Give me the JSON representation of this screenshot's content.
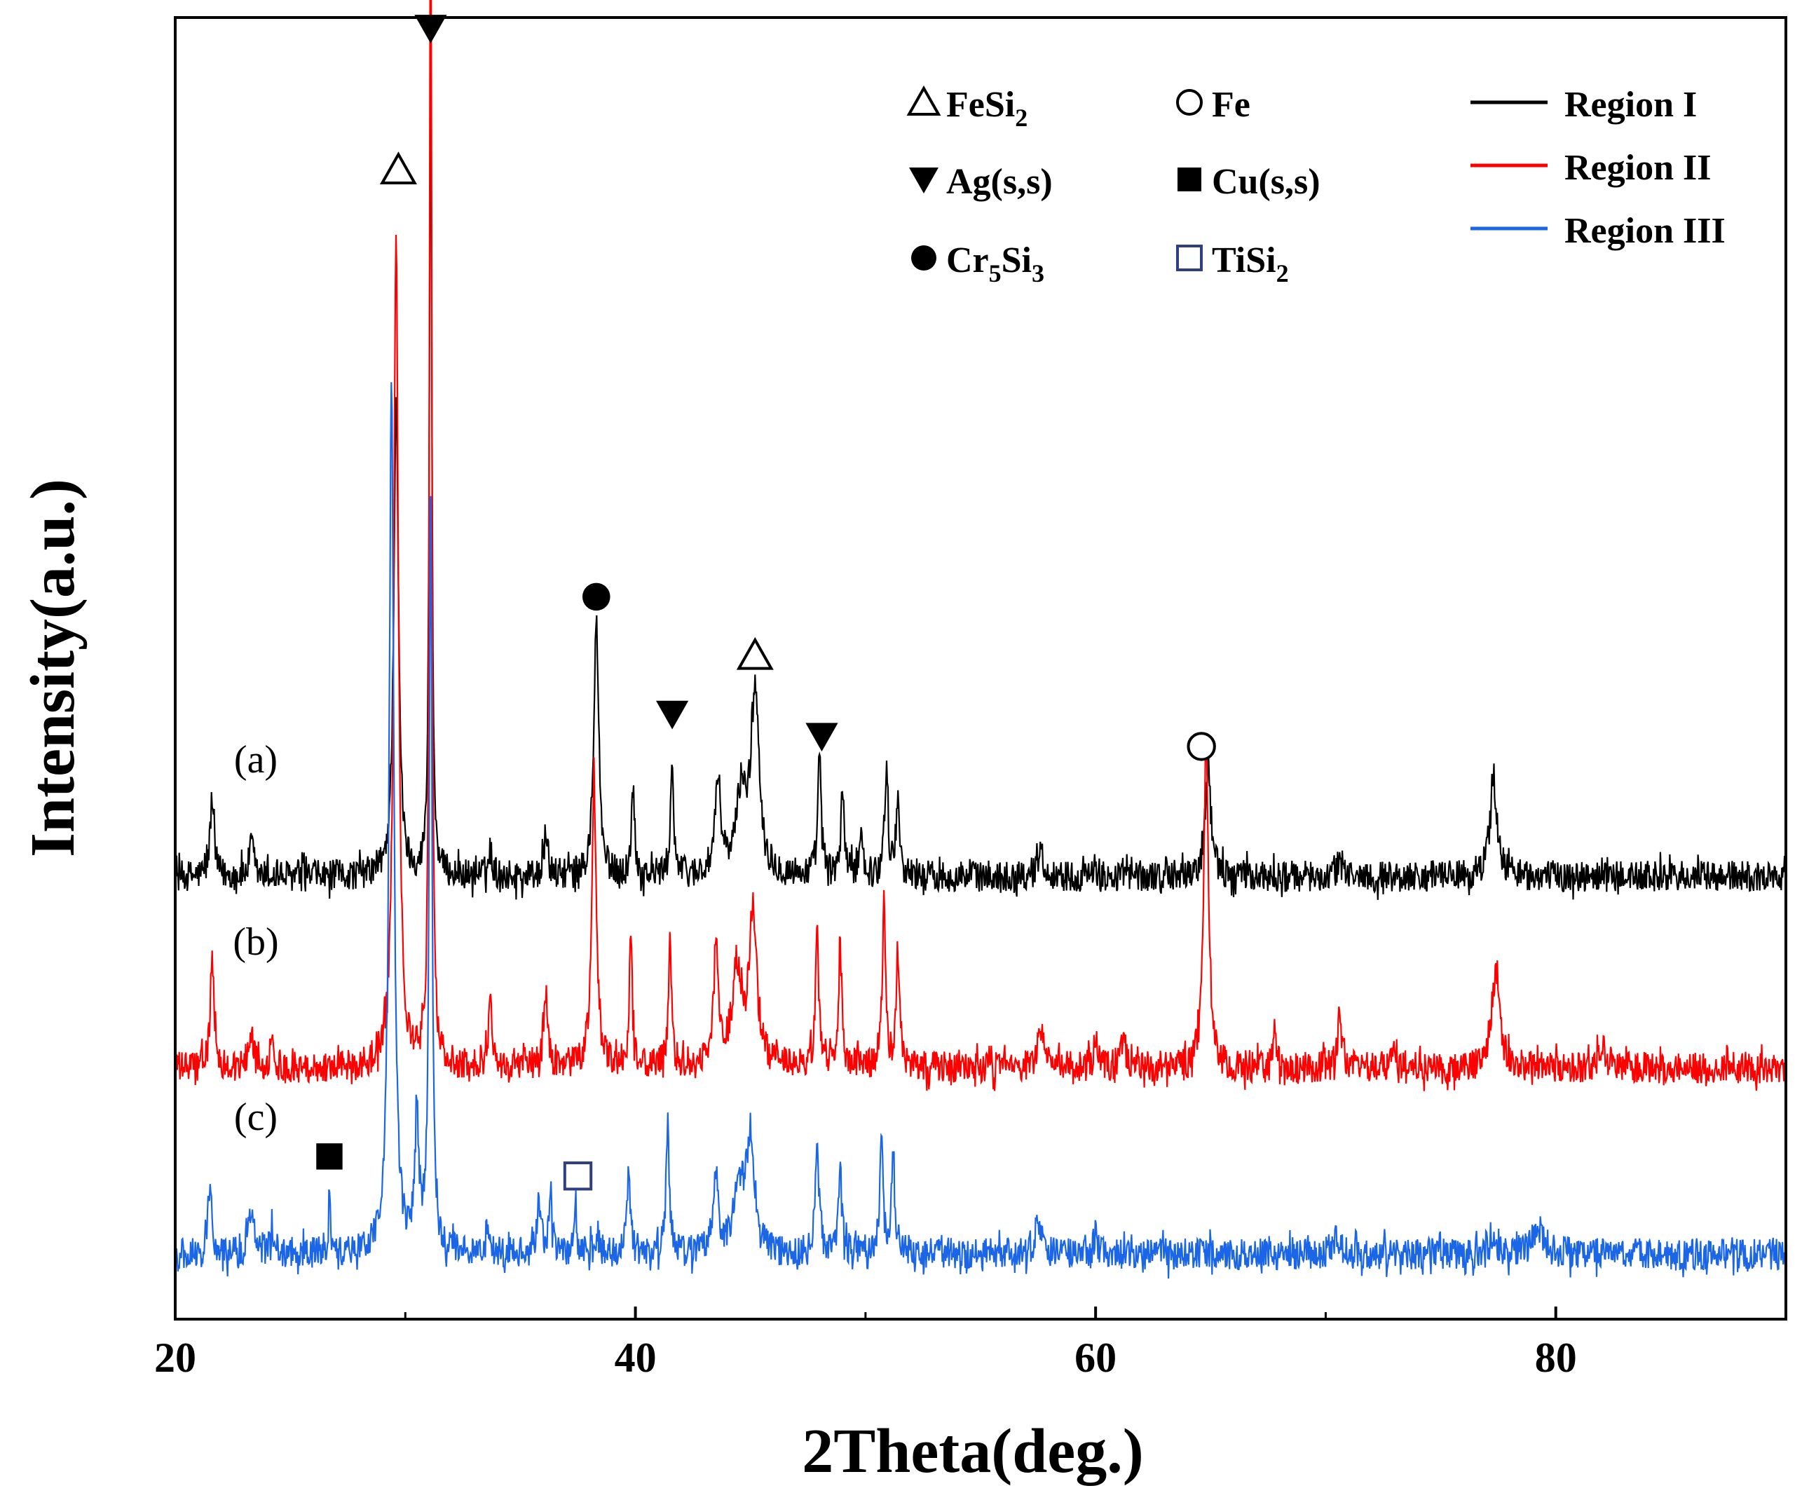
{
  "chart_data": {
    "type": "line",
    "title": "",
    "xlabel": "2Theta(deg.)",
    "ylabel": "Intensity(a.u.)",
    "xlim": [
      20,
      90
    ],
    "ylim": [
      0,
      1
    ],
    "xticks": [
      20,
      40,
      60,
      80
    ],
    "xtick_labels": [
      "20",
      "40",
      "60",
      "80"
    ],
    "yticks_shown": false,
    "grid": false,
    "legend_position": "top-right",
    "series": [
      {
        "name": "Region I",
        "curve_label": "(a)",
        "color": "#000000",
        "baseline": 0.34,
        "noise": 0.012,
        "peaks": [
          {
            "x": 21.6,
            "h": 0.06,
            "w": 0.1
          },
          {
            "x": 23.3,
            "h": 0.025,
            "w": 0.1
          },
          {
            "x": 29.6,
            "h": 0.37,
            "w": 0.12
          },
          {
            "x": 31.1,
            "h": 0.67,
            "w": 0.06
          },
          {
            "x": 33.7,
            "h": 0.02,
            "w": 0.1
          },
          {
            "x": 36.1,
            "h": 0.03,
            "w": 0.1
          },
          {
            "x": 38.3,
            "h": 0.2,
            "w": 0.12
          },
          {
            "x": 39.9,
            "h": 0.07,
            "w": 0.08
          },
          {
            "x": 41.6,
            "h": 0.09,
            "w": 0.08
          },
          {
            "x": 43.6,
            "h": 0.07,
            "w": 0.15
          },
          {
            "x": 44.6,
            "h": 0.06,
            "w": 0.25
          },
          {
            "x": 45.2,
            "h": 0.14,
            "w": 0.22
          },
          {
            "x": 48.0,
            "h": 0.09,
            "w": 0.09
          },
          {
            "x": 49.0,
            "h": 0.07,
            "w": 0.08
          },
          {
            "x": 49.8,
            "h": 0.04,
            "w": 0.08
          },
          {
            "x": 50.9,
            "h": 0.08,
            "w": 0.09
          },
          {
            "x": 51.4,
            "h": 0.06,
            "w": 0.09
          },
          {
            "x": 57.6,
            "h": 0.02,
            "w": 0.15
          },
          {
            "x": 64.9,
            "h": 0.09,
            "w": 0.14
          },
          {
            "x": 70.7,
            "h": 0.015,
            "w": 0.1
          },
          {
            "x": 77.3,
            "h": 0.07,
            "w": 0.2
          }
        ]
      },
      {
        "name": "Region II",
        "curve_label": "(b)",
        "color": "#ff0000",
        "baseline": 0.193,
        "noise": 0.012,
        "peaks": [
          {
            "x": 21.6,
            "h": 0.08,
            "w": 0.1
          },
          {
            "x": 23.3,
            "h": 0.03,
            "w": 0.1
          },
          {
            "x": 24.2,
            "h": 0.015,
            "w": 0.12
          },
          {
            "x": 29.6,
            "h": 0.64,
            "w": 0.12
          },
          {
            "x": 31.1,
            "h": 0.96,
            "w": 0.06
          },
          {
            "x": 33.7,
            "h": 0.05,
            "w": 0.1
          },
          {
            "x": 36.1,
            "h": 0.06,
            "w": 0.1
          },
          {
            "x": 38.2,
            "h": 0.22,
            "w": 0.12
          },
          {
            "x": 39.8,
            "h": 0.1,
            "w": 0.08
          },
          {
            "x": 41.5,
            "h": 0.1,
            "w": 0.08
          },
          {
            "x": 43.5,
            "h": 0.09,
            "w": 0.13
          },
          {
            "x": 44.4,
            "h": 0.07,
            "w": 0.25
          },
          {
            "x": 45.1,
            "h": 0.12,
            "w": 0.2
          },
          {
            "x": 47.9,
            "h": 0.1,
            "w": 0.09
          },
          {
            "x": 48.9,
            "h": 0.09,
            "w": 0.08
          },
          {
            "x": 50.8,
            "h": 0.13,
            "w": 0.08
          },
          {
            "x": 51.4,
            "h": 0.09,
            "w": 0.09
          },
          {
            "x": 57.6,
            "h": 0.03,
            "w": 0.15
          },
          {
            "x": 60.0,
            "h": 0.02,
            "w": 0.1
          },
          {
            "x": 61.2,
            "h": 0.02,
            "w": 0.15
          },
          {
            "x": 64.8,
            "h": 0.25,
            "w": 0.12
          },
          {
            "x": 67.8,
            "h": 0.03,
            "w": 0.08
          },
          {
            "x": 70.6,
            "h": 0.04,
            "w": 0.1
          },
          {
            "x": 73.0,
            "h": 0.015,
            "w": 0.15
          },
          {
            "x": 77.4,
            "h": 0.07,
            "w": 0.2
          },
          {
            "x": 82.0,
            "h": 0.02,
            "w": 0.15
          }
        ]
      },
      {
        "name": "Region III",
        "curve_label": "(c)",
        "color": "#1a66e6",
        "baseline": 0.05,
        "noise": 0.012,
        "peaks": [
          {
            "x": 21.5,
            "h": 0.05,
            "w": 0.1
          },
          {
            "x": 23.3,
            "h": 0.035,
            "w": 0.12
          },
          {
            "x": 24.2,
            "h": 0.015,
            "w": 0.12
          },
          {
            "x": 26.7,
            "h": 0.045,
            "w": 0.04
          },
          {
            "x": 29.4,
            "h": 0.67,
            "w": 0.12
          },
          {
            "x": 30.5,
            "h": 0.1,
            "w": 0.1
          },
          {
            "x": 31.1,
            "h": 0.6,
            "w": 0.07
          },
          {
            "x": 33.6,
            "h": 0.02,
            "w": 0.1
          },
          {
            "x": 35.8,
            "h": 0.04,
            "w": 0.1
          },
          {
            "x": 36.3,
            "h": 0.05,
            "w": 0.08
          },
          {
            "x": 37.4,
            "h": 0.035,
            "w": 0.06
          },
          {
            "x": 38.3,
            "h": 0.02,
            "w": 0.1
          },
          {
            "x": 39.7,
            "h": 0.06,
            "w": 0.1
          },
          {
            "x": 41.4,
            "h": 0.1,
            "w": 0.08
          },
          {
            "x": 43.5,
            "h": 0.06,
            "w": 0.12
          },
          {
            "x": 44.5,
            "h": 0.05,
            "w": 0.25
          },
          {
            "x": 45.0,
            "h": 0.09,
            "w": 0.2
          },
          {
            "x": 47.9,
            "h": 0.09,
            "w": 0.09
          },
          {
            "x": 48.9,
            "h": 0.07,
            "w": 0.08
          },
          {
            "x": 50.7,
            "h": 0.1,
            "w": 0.08
          },
          {
            "x": 51.2,
            "h": 0.08,
            "w": 0.09
          },
          {
            "x": 57.5,
            "h": 0.035,
            "w": 0.12
          },
          {
            "x": 60.0,
            "h": 0.015,
            "w": 0.1
          },
          {
            "x": 70.5,
            "h": 0.015,
            "w": 0.15
          },
          {
            "x": 77.2,
            "h": 0.015,
            "w": 0.2
          },
          {
            "x": 79.2,
            "h": 0.02,
            "w": 0.3
          }
        ]
      }
    ],
    "phase_markers": [
      {
        "symbol": "open-triangle",
        "x": 29.7,
        "y": 0.883,
        "color": "#000000"
      },
      {
        "symbol": "filled-down-triangle",
        "x": 31.1,
        "y": 0.992,
        "color": "#000000"
      },
      {
        "symbol": "filled-circle",
        "x": 38.3,
        "y": 0.555,
        "color": "#000000"
      },
      {
        "symbol": "open-triangle",
        "x": 45.2,
        "y": 0.51,
        "color": "#000000"
      },
      {
        "symbol": "filled-down-triangle",
        "x": 41.6,
        "y": 0.465,
        "color": "#000000"
      },
      {
        "symbol": "filled-down-triangle",
        "x": 48.1,
        "y": 0.448,
        "color": "#000000"
      },
      {
        "symbol": "open-circle",
        "x": 64.6,
        "y": 0.44,
        "color": "#000000"
      },
      {
        "symbol": "filled-square",
        "x": 26.7,
        "y": 0.125,
        "color": "#000000"
      },
      {
        "symbol": "open-square",
        "x": 37.5,
        "y": 0.11,
        "color": "#2f3f7f"
      }
    ],
    "phase_legend": [
      {
        "symbol": "open-triangle",
        "name": "FeSi",
        "sub": "2",
        "color": "#000000"
      },
      {
        "symbol": "open-circle",
        "name": "Fe",
        "sub": "",
        "color": "#000000"
      },
      {
        "symbol": "filled-down-triangle",
        "name": "Ag(s,s)",
        "sub": "",
        "color": "#000000"
      },
      {
        "symbol": "filled-square",
        "name": "Cu(s,s)",
        "sub": "",
        "color": "#000000"
      },
      {
        "symbol": "filled-circle",
        "name": "Cr",
        "sub": "5",
        "name2": "Si",
        "sub2": "3",
        "color": "#000000"
      },
      {
        "symbol": "open-square",
        "name": "TiSi",
        "sub": "2",
        "color": "#2f3f7f"
      }
    ]
  }
}
